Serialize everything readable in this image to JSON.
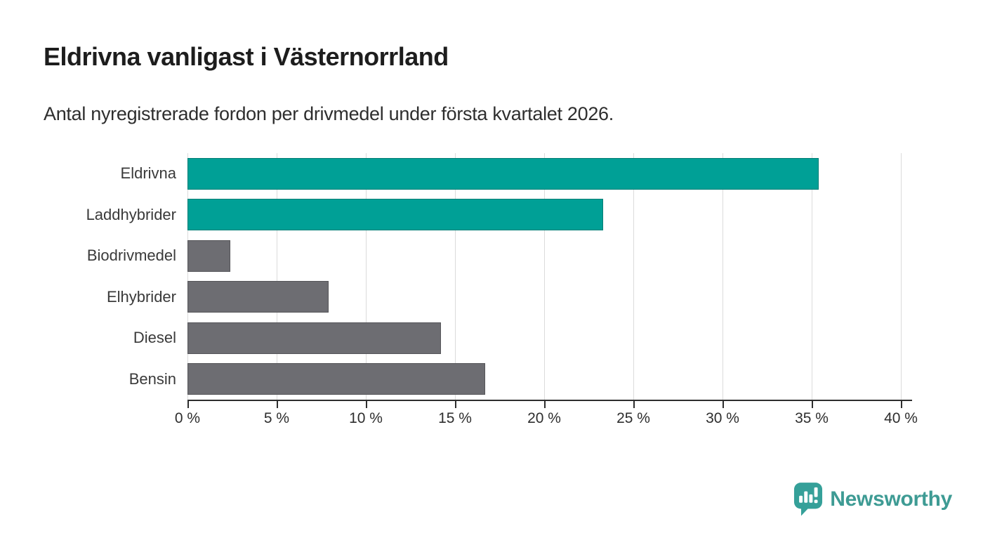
{
  "header": {
    "title": "Eldrivna vanligast i Västernorrland",
    "subtitle": "Antal nyregistrerade fordon per drivmedel under första kvartalet 2026."
  },
  "chart_data": {
    "type": "bar",
    "orientation": "horizontal",
    "title": "Eldrivna vanligast i Västernorrland",
    "subtitle": "Antal nyregistrerade fordon per drivmedel under första kvartalet 2026.",
    "categories": [
      "Eldrivna",
      "Laddhybrider",
      "Biodrivmedel",
      "Elhybrider",
      "Diesel",
      "Bensin"
    ],
    "values": [
      35.4,
      23.3,
      2.4,
      7.9,
      14.2,
      16.7
    ],
    "unit": "%",
    "bar_colors": [
      "#00A096",
      "#00A096",
      "#6D6D72",
      "#6D6D72",
      "#6D6D72",
      "#6D6D72"
    ],
    "highlight_color": "#00A096",
    "default_color": "#6D6D72",
    "xlim": [
      0,
      40
    ],
    "x_ticks": [
      0,
      5,
      10,
      15,
      20,
      25,
      30,
      35,
      40
    ],
    "x_tick_labels": [
      "0 %",
      "5 %",
      "10 %",
      "15 %",
      "20 %",
      "25 %",
      "30 %",
      "35 %",
      "40 %"
    ],
    "grid": "vertical",
    "legend": "none",
    "colors": {
      "grid": "#DBDBDB",
      "axis": "#2E2E2E",
      "tick_text": "#2E2E2E",
      "category_text": "#3A3A3A"
    }
  },
  "branding": {
    "logo_text": "Newsworthy",
    "logo_icon": "speech-bubble-with-bar-chart-and-exclamation",
    "logo_color": "#3E9B94",
    "icon_color": "#35A099"
  }
}
